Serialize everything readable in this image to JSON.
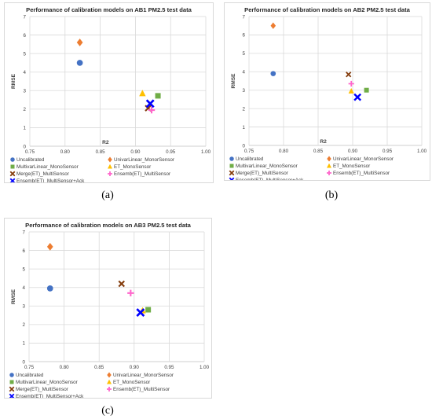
{
  "colors": {
    "Uncalibrated": "#4472c4",
    "UnivarLinear_MonorSensor": "#ed7d31",
    "MultivarLinear_MonoSensor": "#70ad47",
    "ET_MonoSensor": "#ffc000",
    "Merge(ET)_MultiSensor": "#843c0c",
    "Ensemb(ET)_MultiSensor": "#ff66cc",
    "Ensemb(ET)_MultiSensor+Ack": "#0000ff"
  },
  "panel_labels": [
    "(a)",
    "(b)",
    "(c)"
  ],
  "chart_data": [
    {
      "type": "scatter",
      "title": "Performance of calibration models on AB1 PM2.5 test data",
      "xlabel": "R2",
      "ylabel": "RMSE",
      "xlim": [
        0.75,
        1.0
      ],
      "ylim": [
        0,
        7
      ],
      "xticks": [
        "0.75",
        "0.80",
        "0.85",
        "0.90",
        "0.95",
        "1.00"
      ],
      "yticks": [
        "0",
        "1",
        "2",
        "3",
        "4",
        "5",
        "6",
        "7"
      ],
      "grid": true,
      "legend_position": "bottom",
      "series": [
        {
          "name": "Uncalibrated",
          "marker": "circle",
          "x": 0.821,
          "y": 4.5
        },
        {
          "name": "UnivarLinear_MonorSensor",
          "marker": "diamond",
          "x": 0.821,
          "y": 5.6
        },
        {
          "name": "MultivarLinear_MonoSensor",
          "marker": "square",
          "x": 0.932,
          "y": 2.72
        },
        {
          "name": "ET_MonoSensor",
          "marker": "triangle",
          "x": 0.91,
          "y": 2.85
        },
        {
          "name": "Merge(ET)_MultiSensor",
          "marker": "x",
          "x": 0.918,
          "y": 2.05
        },
        {
          "name": "Ensemb(ET)_MultiSensor",
          "marker": "plus",
          "x": 0.923,
          "y": 1.95
        },
        {
          "name": "Ensemb(ET)_MultiSensor+Ack",
          "marker": "x",
          "x": 0.921,
          "y": 2.3
        }
      ]
    },
    {
      "type": "scatter",
      "title": "Performance of calibration models on AB2 PM2.5 test data",
      "xlabel": "R2",
      "ylabel": "RMSE",
      "xlim": [
        0.75,
        1.0
      ],
      "ylim": [
        0,
        7
      ],
      "xticks": [
        "0.75",
        "0.80",
        "0.85",
        "0.90",
        "0.95",
        "1.00"
      ],
      "yticks": [
        "0",
        "1",
        "2",
        "3",
        "4",
        "5",
        "6",
        "7"
      ],
      "grid": true,
      "legend_position": "bottom",
      "series": [
        {
          "name": "Uncalibrated",
          "marker": "circle",
          "x": 0.785,
          "y": 3.9
        },
        {
          "name": "UnivarLinear_MonorSensor",
          "marker": "diamond",
          "x": 0.785,
          "y": 6.5
        },
        {
          "name": "MultivarLinear_MonoSensor",
          "marker": "square",
          "x": 0.92,
          "y": 3.0
        },
        {
          "name": "ET_MonoSensor",
          "marker": "triangle",
          "x": 0.898,
          "y": 2.95
        },
        {
          "name": "Merge(ET)_MultiSensor",
          "marker": "x",
          "x": 0.894,
          "y": 3.85
        },
        {
          "name": "Ensemb(ET)_MultiSensor",
          "marker": "plus",
          "x": 0.898,
          "y": 3.35
        },
        {
          "name": "Ensemb(ET)_MultiSensor+Ack",
          "marker": "x",
          "x": 0.907,
          "y": 2.62
        }
      ]
    },
    {
      "type": "scatter",
      "title": "Performance of calibration models on AB3 PM2.5 test data",
      "xlabel": "",
      "ylabel": "RMSE",
      "xlim": [
        0.75,
        1.0
      ],
      "ylim": [
        0,
        7
      ],
      "xticks": [
        "0.75",
        "0.80",
        "0.85",
        "0.90",
        "0.95",
        "1.00"
      ],
      "yticks": [
        "0",
        "1",
        "2",
        "3",
        "4",
        "5",
        "6",
        "7"
      ],
      "grid": true,
      "legend_position": "bottom",
      "series": [
        {
          "name": "Uncalibrated",
          "marker": "circle",
          "x": 0.78,
          "y": 3.95
        },
        {
          "name": "UnivarLinear_MonorSensor",
          "marker": "diamond",
          "x": 0.78,
          "y": 6.2
        },
        {
          "name": "MultivarLinear_MonoSensor",
          "marker": "square",
          "x": 0.92,
          "y": 2.8
        },
        {
          "name": "ET_MonoSensor",
          "marker": "triangle",
          "x": 0.912,
          "y": 2.75
        },
        {
          "name": "Merge(ET)_MultiSensor",
          "marker": "x",
          "x": 0.882,
          "y": 4.2
        },
        {
          "name": "Ensemb(ET)_MultiSensor",
          "marker": "plus",
          "x": 0.895,
          "y": 3.7
        },
        {
          "name": "Ensemb(ET)_MultiSensor+Ack",
          "marker": "x",
          "x": 0.909,
          "y": 2.65
        }
      ]
    }
  ]
}
